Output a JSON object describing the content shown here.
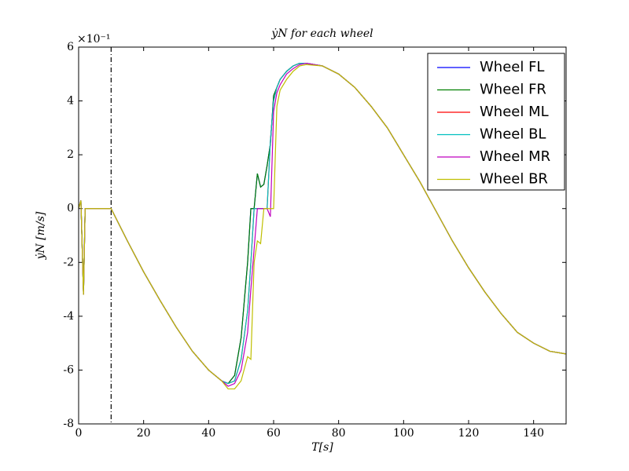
{
  "chart_data": {
    "type": "line",
    "title": "ẏN for each wheel",
    "xlabel": "T[s]",
    "ylabel": "ẏN [m/s]",
    "y_offset_label": "×10⁻¹",
    "vline": 10,
    "x": [
      0,
      0.7,
      1.5,
      2,
      10,
      15,
      20,
      25,
      30,
      35,
      40,
      44,
      46,
      48,
      50,
      52,
      53,
      54,
      55,
      56,
      57,
      58,
      59,
      60,
      61,
      62,
      64,
      66,
      68,
      70,
      75,
      80,
      85,
      90,
      95,
      100,
      105,
      110,
      115,
      120,
      125,
      130,
      135,
      140,
      145,
      150
    ],
    "series": [
      {
        "name": "Wheel FL",
        "color": "#0000ff",
        "values": [
          0,
          0.3,
          -3.2,
          0,
          0,
          -1.2,
          -2.35,
          -3.4,
          -4.4,
          -5.3,
          -6.0,
          -6.4,
          -6.5,
          -6.2,
          -4.8,
          -2.0,
          0,
          0,
          1.3,
          0.8,
          0.9,
          1.6,
          2.4,
          4.2,
          4.5,
          4.8,
          5.1,
          5.3,
          5.4,
          5.4,
          5.3,
          5.0,
          4.5,
          3.8,
          3.0,
          2.0,
          1.0,
          -0.1,
          -1.2,
          -2.2,
          -3.1,
          -3.9,
          -4.6,
          -5.0,
          -5.3,
          -5.4
        ]
      },
      {
        "name": "Wheel FR",
        "color": "#008000",
        "values": [
          0,
          0.3,
          -3.2,
          0,
          0,
          -1.2,
          -2.35,
          -3.4,
          -4.4,
          -5.3,
          -6.0,
          -6.4,
          -6.5,
          -6.2,
          -4.8,
          -2.0,
          0,
          0,
          1.3,
          0.8,
          0.9,
          1.6,
          2.4,
          4.2,
          4.5,
          4.8,
          5.1,
          5.3,
          5.4,
          5.4,
          5.3,
          5.0,
          4.5,
          3.8,
          3.0,
          2.0,
          1.0,
          -0.1,
          -1.2,
          -2.2,
          -3.1,
          -3.9,
          -4.6,
          -5.0,
          -5.3,
          -5.4
        ]
      },
      {
        "name": "Wheel ML",
        "color": "#ff0000",
        "values": [
          0,
          0.3,
          -3.2,
          0,
          0,
          -1.2,
          -2.35,
          -3.4,
          -4.4,
          -5.3,
          -6.0,
          -6.4,
          -6.5,
          -6.4,
          -5.6,
          -3.8,
          -2.0,
          0,
          0,
          0,
          0,
          0,
          2.5,
          4.0,
          4.5,
          4.8,
          5.1,
          5.3,
          5.4,
          5.4,
          5.3,
          5.0,
          4.5,
          3.8,
          3.0,
          2.0,
          1.0,
          -0.1,
          -1.2,
          -2.2,
          -3.1,
          -3.9,
          -4.6,
          -5.0,
          -5.3,
          -5.4
        ]
      },
      {
        "name": "Wheel BL",
        "color": "#00bfbf",
        "values": [
          0,
          0.3,
          -3.2,
          0,
          0,
          -1.2,
          -2.35,
          -3.4,
          -4.4,
          -5.3,
          -6.0,
          -6.4,
          -6.5,
          -6.4,
          -5.6,
          -3.8,
          -2.0,
          0,
          0,
          0,
          0,
          0,
          2.5,
          4.0,
          4.5,
          4.8,
          5.1,
          5.3,
          5.4,
          5.4,
          5.3,
          5.0,
          4.5,
          3.8,
          3.0,
          2.0,
          1.0,
          -0.1,
          -1.2,
          -2.2,
          -3.1,
          -3.9,
          -4.6,
          -5.0,
          -5.3,
          -5.4
        ]
      },
      {
        "name": "Wheel MR",
        "color": "#bf00bf",
        "values": [
          0,
          0.3,
          -3.2,
          0,
          0,
          -1.2,
          -2.35,
          -3.4,
          -4.4,
          -5.3,
          -6.0,
          -6.4,
          -6.6,
          -6.5,
          -6.0,
          -4.6,
          -3.0,
          -1.5,
          0,
          0,
          0,
          0,
          -0.3,
          3.6,
          4.3,
          4.6,
          5.0,
          5.2,
          5.35,
          5.4,
          5.3,
          5.0,
          4.5,
          3.8,
          3.0,
          2.0,
          1.0,
          -0.1,
          -1.2,
          -2.2,
          -3.1,
          -3.9,
          -4.6,
          -5.0,
          -5.3,
          -5.4
        ]
      },
      {
        "name": "Wheel BR",
        "color": "#bfbf00",
        "values": [
          0,
          0.3,
          -3.2,
          0,
          0,
          -1.2,
          -2.35,
          -3.4,
          -4.4,
          -5.3,
          -6.0,
          -6.4,
          -6.7,
          -6.7,
          -6.4,
          -5.5,
          -5.6,
          -2.0,
          -1.2,
          -1.3,
          0,
          0,
          0,
          0,
          3.8,
          4.4,
          4.8,
          5.1,
          5.3,
          5.35,
          5.3,
          5.0,
          4.5,
          3.8,
          3.0,
          2.0,
          1.0,
          -0.1,
          -1.2,
          -2.2,
          -3.1,
          -3.9,
          -4.6,
          -5.0,
          -5.3,
          -5.4
        ]
      }
    ],
    "xlim": [
      0,
      150
    ],
    "xticks": [
      0,
      20,
      40,
      60,
      80,
      100,
      120,
      140
    ],
    "ylim": [
      -8,
      6
    ],
    "yticks": [
      -8,
      -6,
      -4,
      -2,
      0,
      2,
      4,
      6
    ],
    "grid": false,
    "legend": "upper right"
  }
}
